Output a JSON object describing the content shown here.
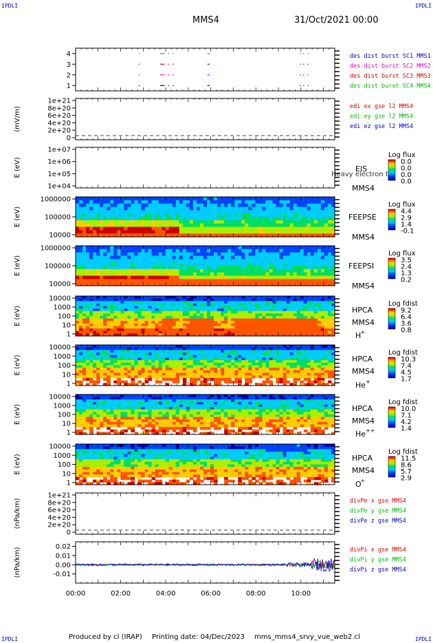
{
  "header": {
    "corner_tl": "IPDLI",
    "corner_tr": "IPDLI",
    "corner_bl": "IPDLI",
    "corner_br": "IPDLI",
    "mission": "MMS4",
    "date": "31/Oct/2021 00:00"
  },
  "footer": {
    "produced": "Produced by cl (IRAP)",
    "printing": "Printing date: 04/Dec/2023",
    "script": "mms_mms4_srvy_vue_web2.cl"
  },
  "colors": {
    "red": "#dd0000",
    "magenta": "#dd00dd",
    "green": "#00bb00",
    "blue": "#0000cc"
  },
  "chart_data": [
    {
      "type": "line",
      "panel": "burst",
      "ylim": [
        0.5,
        4.5
      ],
      "yticks": [
        "1",
        "2",
        "3",
        "4"
      ],
      "series": [
        {
          "name": "des dist burst SC1 MMS1",
          "color": "#0000cc",
          "level": 1,
          "segments": [
            [
              2.8,
              2.82
            ],
            [
              3.75,
              3.95
            ],
            [
              4.1,
              4.12
            ],
            [
              4.3,
              4.32
            ],
            [
              5.85,
              5.95
            ],
            [
              9.95,
              9.97
            ],
            [
              10.1,
              10.12
            ],
            [
              10.3,
              10.32
            ]
          ]
        },
        {
          "name": "des dist burst SC2 MMS2",
          "color": "#dd00dd",
          "level": 2,
          "segments": [
            [
              2.8,
              2.82
            ],
            [
              3.75,
              3.95
            ],
            [
              4.1,
              4.12
            ],
            [
              4.3,
              4.32
            ],
            [
              5.85,
              5.95
            ],
            [
              9.95,
              9.97
            ],
            [
              10.1,
              10.12
            ],
            [
              10.3,
              10.32
            ]
          ]
        },
        {
          "name": "des dist burst SC3 MMS3",
          "color": "#dd0000",
          "level": 3,
          "segments": [
            [
              2.8,
              2.82
            ],
            [
              3.75,
              3.95
            ],
            [
              4.1,
              4.12
            ],
            [
              4.3,
              4.32
            ],
            [
              5.85,
              5.95
            ],
            [
              9.95,
              9.97
            ],
            [
              10.1,
              10.12
            ],
            [
              10.3,
              10.32
            ]
          ]
        },
        {
          "name": "des dist burst SC4 MMS4",
          "color": "#00bb00",
          "level": 4,
          "segments": [
            [
              2.8,
              2.82
            ],
            [
              3.75,
              3.95
            ],
            [
              4.1,
              4.12
            ],
            [
              4.3,
              4.32
            ],
            [
              5.85,
              5.95
            ],
            [
              9.95,
              9.97
            ],
            [
              10.1,
              10.12
            ],
            [
              10.3,
              10.32
            ]
          ]
        }
      ]
    },
    {
      "type": "line",
      "panel": "edi",
      "ylabel": "(mV/m)",
      "yticks": [
        "1e+21",
        "8e+20",
        "6e+20",
        "4e+20",
        "2e+20",
        "0"
      ],
      "series": [
        {
          "name": "edi ex gse l2 MMS4",
          "color": "#dd0000"
        },
        {
          "name": "edi ey gse l2 MMS4",
          "color": "#00bb00"
        },
        {
          "name": "edi ez gse l2 MMS4",
          "color": "#0000cc"
        }
      ]
    },
    {
      "type": "heatmap",
      "panel": "eis",
      "ylabel": "E (eV)",
      "yticks": [
        "1e+07",
        "1e+06",
        "1e+05",
        "1e+04"
      ],
      "instrument": "EIS",
      "spacecraft": "MMS4",
      "overlay_text": "Heavy electron to",
      "colorbar_title": "Log flux",
      "colorbar_ticks": [
        "0.0",
        "0.0",
        "0.0",
        "0.0"
      ]
    },
    {
      "type": "heatmap",
      "panel": "feepse",
      "ylabel": "E (eV)",
      "yticks": [
        "1000000",
        "100000",
        "10000"
      ],
      "instrument": "FEEPSE",
      "spacecraft": "MMS4",
      "colorbar_title": "Log flux",
      "colorbar_ticks": [
        "4.4",
        "2.9",
        "1.4",
        "-0.1"
      ]
    },
    {
      "type": "heatmap",
      "panel": "feepsi",
      "ylabel": "E (eV)",
      "yticks": [
        "1000000",
        "100000",
        "10000"
      ],
      "instrument": "FEEPSI",
      "spacecraft": "MMS4",
      "colorbar_title": "Log flux",
      "colorbar_ticks": [
        "3.5",
        "2.4",
        "1.3",
        "0.2"
      ]
    },
    {
      "type": "heatmap",
      "panel": "hpca_h",
      "ylabel": "E (eV)",
      "yticks": [
        "10000",
        "1000",
        "100",
        "10",
        "1"
      ],
      "instrument": "HPCA",
      "spacecraft": "MMS4",
      "species": "H",
      "species_charge": "+",
      "colorbar_title": "Log fdist",
      "colorbar_ticks": [
        "9.2",
        "6.4",
        "3.6",
        "0.8"
      ]
    },
    {
      "type": "heatmap",
      "panel": "hpca_he1",
      "ylabel": "E (eV)",
      "yticks": [
        "10000",
        "1000",
        "100",
        "10",
        "1"
      ],
      "instrument": "HPCA",
      "spacecraft": "MMS4",
      "species": "He",
      "species_charge": "+",
      "colorbar_title": "Log fdist",
      "colorbar_ticks": [
        "10.3",
        "7.4",
        "4.5",
        "1.7"
      ]
    },
    {
      "type": "heatmap",
      "panel": "hpca_he2",
      "ylabel": "E (eV)",
      "yticks": [
        "10000",
        "1000",
        "100",
        "10",
        "1"
      ],
      "instrument": "HPCA",
      "spacecraft": "MMS4",
      "species": "He",
      "species_charge": "++",
      "colorbar_title": "Log fdist",
      "colorbar_ticks": [
        "10.0",
        "7.1",
        "4.2",
        "1.4"
      ]
    },
    {
      "type": "heatmap",
      "panel": "hpca_o",
      "ylabel": "E (eV)",
      "yticks": [
        "10000",
        "1000",
        "100",
        "10",
        "1"
      ],
      "instrument": "HPCA",
      "spacecraft": "MMS4",
      "species": "O",
      "species_charge": "+",
      "colorbar_title": "Log fdist",
      "colorbar_ticks": [
        "11.5",
        "8.6",
        "5.7",
        "2.9"
      ]
    },
    {
      "type": "line",
      "panel": "divpe",
      "ylabel": "(nPa/km)",
      "yticks": [
        "1e+21",
        "8e+20",
        "6e+20",
        "4e+20",
        "2e+20",
        "0"
      ],
      "series": [
        {
          "name": "divPe x gse MMS4",
          "color": "#dd0000"
        },
        {
          "name": "divPe y gse MMS4",
          "color": "#00bb00"
        },
        {
          "name": "divPe z gse MMS4",
          "color": "#0000cc"
        }
      ]
    },
    {
      "type": "line",
      "panel": "divpi",
      "ylabel": "(nPa/km)",
      "ylim": [
        -0.02,
        0.025
      ],
      "yticks": [
        "0.02",
        "0.01",
        "0.00",
        "-0.01"
      ],
      "yticks_values": [
        0.02,
        0.01,
        0.0,
        -0.01
      ],
      "series": [
        {
          "name": "divPi x gse MMS4",
          "color": "#dd0000"
        },
        {
          "name": "divPi y gse MMS4",
          "color": "#00bb00"
        },
        {
          "name": "divPi z gse MMS4",
          "color": "#0000cc"
        }
      ]
    }
  ],
  "xaxis": {
    "range_hours": [
      0,
      11.5
    ],
    "ticks": [
      "00:00",
      "02:00",
      "04:00",
      "06:00",
      "08:00",
      "10:00"
    ],
    "tick_hours": [
      0,
      2,
      4,
      6,
      8,
      10
    ]
  }
}
